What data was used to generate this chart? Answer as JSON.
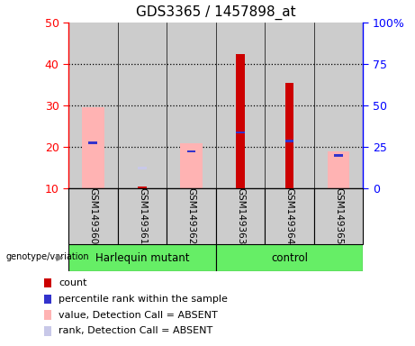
{
  "title": "GDS3365 / 1457898_at",
  "samples": [
    "GSM149360",
    "GSM149361",
    "GSM149362",
    "GSM149363",
    "GSM149364",
    "GSM149365"
  ],
  "groups": [
    "Harlequin mutant",
    "control"
  ],
  "ylim_left": [
    10,
    50
  ],
  "ylim_right": [
    0,
    100
  ],
  "yticks_left": [
    10,
    20,
    30,
    40,
    50
  ],
  "yticks_right": [
    0,
    25,
    50,
    75,
    100
  ],
  "ytick_labels_right": [
    "0",
    "25",
    "50",
    "75",
    "100%"
  ],
  "count_values": [
    null,
    10.5,
    null,
    42.5,
    35.5,
    null
  ],
  "rank_values": [
    21,
    null,
    19,
    23.5,
    21.5,
    18
  ],
  "pink_values": [
    29.5,
    null,
    21,
    null,
    null,
    19
  ],
  "light_purple_values": [
    null,
    15,
    null,
    null,
    null,
    null
  ],
  "colors": {
    "count": "#cc0000",
    "rank": "#3333cc",
    "pink": "#ffb3b3",
    "light_purple": "#c8c8e8",
    "group_bg": "#66ee66",
    "sample_bg": "#cccccc",
    "plot_bg": "#ffffff"
  },
  "legend_items": [
    {
      "label": "count",
      "color": "#cc0000"
    },
    {
      "label": "percentile rank within the sample",
      "color": "#3333cc"
    },
    {
      "label": "value, Detection Call = ABSENT",
      "color": "#ffb3b3"
    },
    {
      "label": "rank, Detection Call = ABSENT",
      "color": "#c8c8e8"
    }
  ]
}
